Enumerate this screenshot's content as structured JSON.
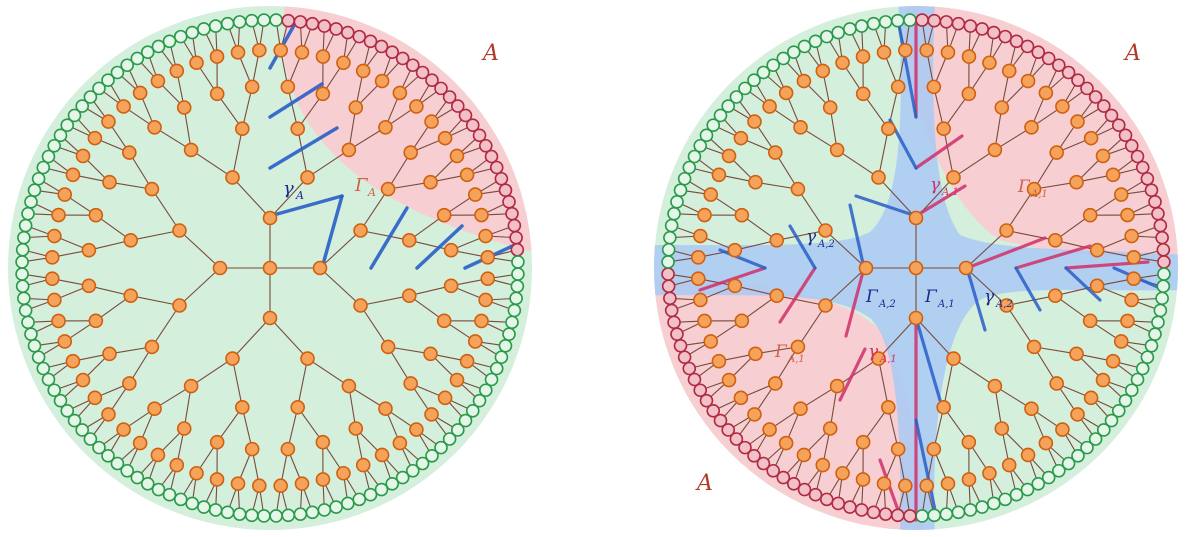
{
  "colors": {
    "bulk_green": "#d4efdc",
    "region_red": "#f7cfd2",
    "geodesic_band": "#a9c9f5",
    "edge": "#7a4a3a",
    "node_fill": "#f5a25a",
    "node_stroke": "#d0600f",
    "leaf_green_fill": "#e4f6e7",
    "leaf_green_stroke": "#2a9a4a",
    "leaf_red_fill": "#f2c0c8",
    "leaf_red_stroke": "#b02a40",
    "cut_blue": "#2a5fc8",
    "cut_pink": "#d0306a",
    "label_A": "#b03a2a",
    "label_gamma_blue": "#1a2a8a",
    "label_gamma_pink": "#d0306a",
    "label_Gamma_red": "#d0604a"
  },
  "left_diagram": {
    "region_label": "A",
    "gamma_label": "γ",
    "gamma_sub": "A",
    "Gamma_label": "Γ",
    "Gamma_sub": "A"
  },
  "right_diagram": {
    "region_label_top": "A",
    "region_label_bottom": "A",
    "gamma1_top": "γ",
    "gamma1_top_sub": "A,1",
    "Gamma1_top": "Γ",
    "Gamma1_top_sub": "A,1",
    "gamma2_left": "γ",
    "gamma2_left_sub": "A,2",
    "Gamma2_center": "Γ",
    "Gamma2_center_sub": "A,2",
    "Gamma1_center": "Γ",
    "Gamma1_center_sub": "A,1",
    "gamma2_right": "γ",
    "gamma2_right_sub": "A,2",
    "Gamma1_bottom": "Γ",
    "Gamma1_bottom_sub": "A,1",
    "gamma1_bottom": "γ",
    "gamma1_bottom_sub": "A,1"
  }
}
